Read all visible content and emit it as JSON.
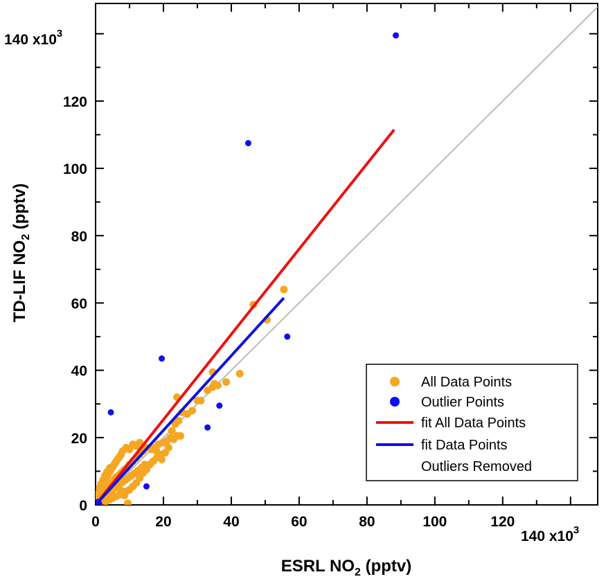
{
  "chart_data": {
    "type": "scatter",
    "title": "",
    "xlabel": {
      "base": "ESRL NO",
      "sub": "2",
      "suffix": " (pptv)"
    },
    "ylabel": {
      "base": "TD-LIF NO",
      "sub": "2",
      "suffix": " (pptv)"
    },
    "x_tick_labels": [
      "0",
      "20",
      "40",
      "60",
      "80",
      "100",
      "120"
    ],
    "y_tick_labels": [
      "0",
      "20",
      "40",
      "60",
      "80",
      "100",
      "120"
    ],
    "x_top_tick_label": {
      "base": "140 x10",
      "exp": "3"
    },
    "y_top_tick_label": {
      "base": "140 x10",
      "exp": "3"
    },
    "x_ticks": [
      0,
      20,
      40,
      60,
      80,
      100,
      120,
      140
    ],
    "y_ticks": [
      0,
      20,
      40,
      60,
      80,
      100,
      120,
      140
    ],
    "xlim": [
      0,
      148
    ],
    "ylim": [
      0,
      149
    ],
    "units_multiplier": 1000,
    "grid": false,
    "legend_position": "bottom-right",
    "legend": [
      {
        "label": "All Data Points",
        "marker": "circle",
        "color": "#f5a623"
      },
      {
        "label": "Outlier Points",
        "marker": "circle",
        "color": "#1010ee"
      },
      {
        "label": "fit All Data Points",
        "marker": "line",
        "color": "#ee1111"
      },
      {
        "label": "fit Data Points",
        "label2": "Outliers Removed",
        "marker": "line",
        "color": "#1111dd"
      }
    ],
    "series": [
      {
        "name": "All Data Points",
        "color": "#f5a623",
        "points": [
          [
            0.2,
            0.3
          ],
          [
            0.4,
            0.8
          ],
          [
            0.6,
            0.4
          ],
          [
            0.8,
            1.2
          ],
          [
            1.0,
            0.6
          ],
          [
            1.2,
            1.8
          ],
          [
            1.4,
            1.0
          ],
          [
            1.6,
            2.2
          ],
          [
            1.8,
            1.4
          ],
          [
            2.0,
            2.6
          ],
          [
            2.2,
            1.6
          ],
          [
            2.4,
            3.0
          ],
          [
            2.6,
            2.0
          ],
          [
            2.8,
            3.6
          ],
          [
            3.0,
            2.4
          ],
          [
            3.2,
            4.0
          ],
          [
            3.4,
            2.8
          ],
          [
            3.6,
            4.6
          ],
          [
            3.8,
            3.2
          ],
          [
            4.0,
            5.2
          ],
          [
            4.2,
            3.6
          ],
          [
            4.4,
            5.8
          ],
          [
            4.6,
            4.0
          ],
          [
            4.8,
            6.4
          ],
          [
            5.0,
            4.4
          ],
          [
            5.2,
            7.0
          ],
          [
            5.4,
            4.8
          ],
          [
            5.6,
            7.6
          ],
          [
            5.8,
            5.2
          ],
          [
            6.0,
            8.2
          ],
          [
            6.4,
            5.6
          ],
          [
            6.8,
            8.8
          ],
          [
            7.2,
            6.2
          ],
          [
            7.6,
            9.6
          ],
          [
            8.0,
            6.8
          ],
          [
            8.4,
            10.4
          ],
          [
            8.8,
            7.4
          ],
          [
            9.2,
            11.0
          ],
          [
            9.6,
            8.0
          ],
          [
            10.0,
            12.0
          ],
          [
            10.5,
            8.6
          ],
          [
            11.0,
            13.0
          ],
          [
            11.5,
            9.4
          ],
          [
            12.0,
            14.0
          ],
          [
            12.5,
            10.2
          ],
          [
            13.0,
            15.0
          ],
          [
            13.5,
            11.0
          ],
          [
            14.0,
            16.0
          ],
          [
            14.5,
            12.0
          ],
          [
            15.0,
            17.0
          ],
          [
            1.0,
            3.0
          ],
          [
            1.5,
            4.2
          ],
          [
            2.0,
            5.4
          ],
          [
            2.5,
            6.6
          ],
          [
            3.0,
            7.6
          ],
          [
            3.5,
            8.6
          ],
          [
            4.0,
            9.6
          ],
          [
            4.5,
            10.4
          ],
          [
            5.0,
            11.2
          ],
          [
            5.5,
            12.0
          ],
          [
            6.0,
            12.8
          ],
          [
            6.5,
            13.6
          ],
          [
            7.0,
            14.2
          ],
          [
            7.5,
            15.0
          ],
          [
            8.0,
            16.0
          ],
          [
            9.0,
            17.0
          ],
          [
            10.0,
            16.5
          ],
          [
            11.0,
            18.0
          ],
          [
            12.0,
            17.5
          ],
          [
            13.0,
            18.5
          ],
          [
            3.0,
            1.0
          ],
          [
            4.0,
            1.5
          ],
          [
            5.0,
            2.0
          ],
          [
            6.0,
            2.5
          ],
          [
            7.0,
            3.0
          ],
          [
            8.0,
            3.5
          ],
          [
            9.0,
            4.0
          ],
          [
            10.0,
            4.5
          ],
          [
            11.0,
            5.5
          ],
          [
            12.0,
            6.5
          ],
          [
            9.5,
            0.5
          ],
          [
            8.5,
            2.8
          ],
          [
            7.5,
            4.2
          ],
          [
            13.0,
            8.0
          ],
          [
            14.0,
            9.5
          ],
          [
            15.0,
            10.5
          ],
          [
            16.0,
            12.0
          ],
          [
            17.0,
            13.0
          ],
          [
            18.0,
            14.0
          ],
          [
            19.0,
            15.0
          ],
          [
            16.5,
            16.5
          ],
          [
            17.5,
            17.0
          ],
          [
            18.5,
            18.0
          ],
          [
            20.0,
            18.5
          ],
          [
            21.0,
            19.0
          ],
          [
            22.0,
            20.0
          ],
          [
            23.0,
            19.5
          ],
          [
            24.0,
            20.5
          ],
          [
            25.0,
            20.5
          ],
          [
            24.5,
            25.0
          ],
          [
            20.5,
            15.5
          ],
          [
            19.5,
            13.5
          ],
          [
            18.0,
            16.0
          ],
          [
            21.5,
            17.0
          ],
          [
            22.5,
            22.0
          ],
          [
            23.5,
            24.0
          ],
          [
            24.0,
            32.0
          ],
          [
            25.5,
            27.5
          ],
          [
            27.0,
            27.0
          ],
          [
            28.5,
            28.0
          ],
          [
            30.0,
            31.0
          ],
          [
            31.0,
            31.0
          ],
          [
            34.5,
            35.0
          ],
          [
            35.0,
            36.0
          ],
          [
            34.5,
            39.5
          ],
          [
            38.5,
            36.5
          ],
          [
            42.5,
            39.0
          ],
          [
            46.5,
            59.5
          ],
          [
            50.5,
            55.0
          ],
          [
            55.5,
            64.0
          ],
          [
            36.0,
            35.5
          ],
          [
            33.0,
            34.0
          ],
          [
            0.5,
            2.0
          ],
          [
            0.8,
            3.4
          ],
          [
            1.2,
            5.0
          ],
          [
            1.6,
            6.2
          ],
          [
            2.2,
            7.4
          ],
          [
            2.8,
            8.8
          ],
          [
            3.4,
            9.8
          ],
          [
            4.2,
            11.0
          ]
        ]
      },
      {
        "name": "Outlier Points",
        "color": "#1010ee",
        "points": [
          [
            88.5,
            139.5
          ],
          [
            45.0,
            107.5
          ],
          [
            56.5,
            50.0
          ],
          [
            19.5,
            43.5
          ],
          [
            4.5,
            27.5
          ],
          [
            36.5,
            29.5
          ],
          [
            33.0,
            23.0
          ],
          [
            15.0,
            5.5
          ],
          [
            0.3,
            0.5
          ],
          [
            0.5,
            0.2
          ],
          [
            0.7,
            0.9
          ],
          [
            1.0,
            0.4
          ]
        ]
      }
    ],
    "fits": [
      {
        "name": "fit All Data Points",
        "color": "#ee1111",
        "x": [
          0,
          88
        ],
        "y": [
          0,
          111.5
        ]
      },
      {
        "name": "fit Data Points Outliers Removed",
        "color": "#1111dd",
        "x": [
          0,
          55.5
        ],
        "y": [
          0,
          61.5
        ]
      }
    ],
    "reference_line": {
      "color": "#bbbbbb",
      "x": [
        0,
        148
      ],
      "y": [
        0,
        148
      ]
    }
  }
}
